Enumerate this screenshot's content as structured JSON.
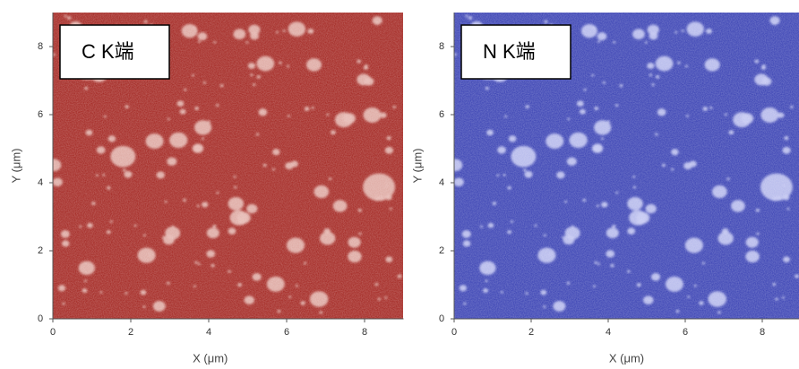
{
  "chart_data": [
    {
      "type": "image",
      "title": "C K端",
      "color": "#a52a25",
      "spot_color": "#e6b9b2",
      "x_label": "X (μm)",
      "y_label": "Y (μm)",
      "xlim": [
        0,
        9
      ],
      "ylim": [
        0,
        9
      ],
      "xticks": [
        0,
        2,
        4,
        6,
        8
      ],
      "yticks": [
        0,
        2,
        4,
        6,
        8
      ]
    },
    {
      "type": "image",
      "title": "N K端",
      "color": "#3d45b5",
      "spot_color": "#c4c8f2",
      "x_label": "X (μm)",
      "y_label": "Y (μm)",
      "xlim": [
        0,
        9
      ],
      "ylim": [
        0,
        9
      ],
      "xticks": [
        0,
        2,
        4,
        6,
        8
      ],
      "yticks": [
        0,
        2,
        4,
        6,
        8
      ]
    }
  ]
}
